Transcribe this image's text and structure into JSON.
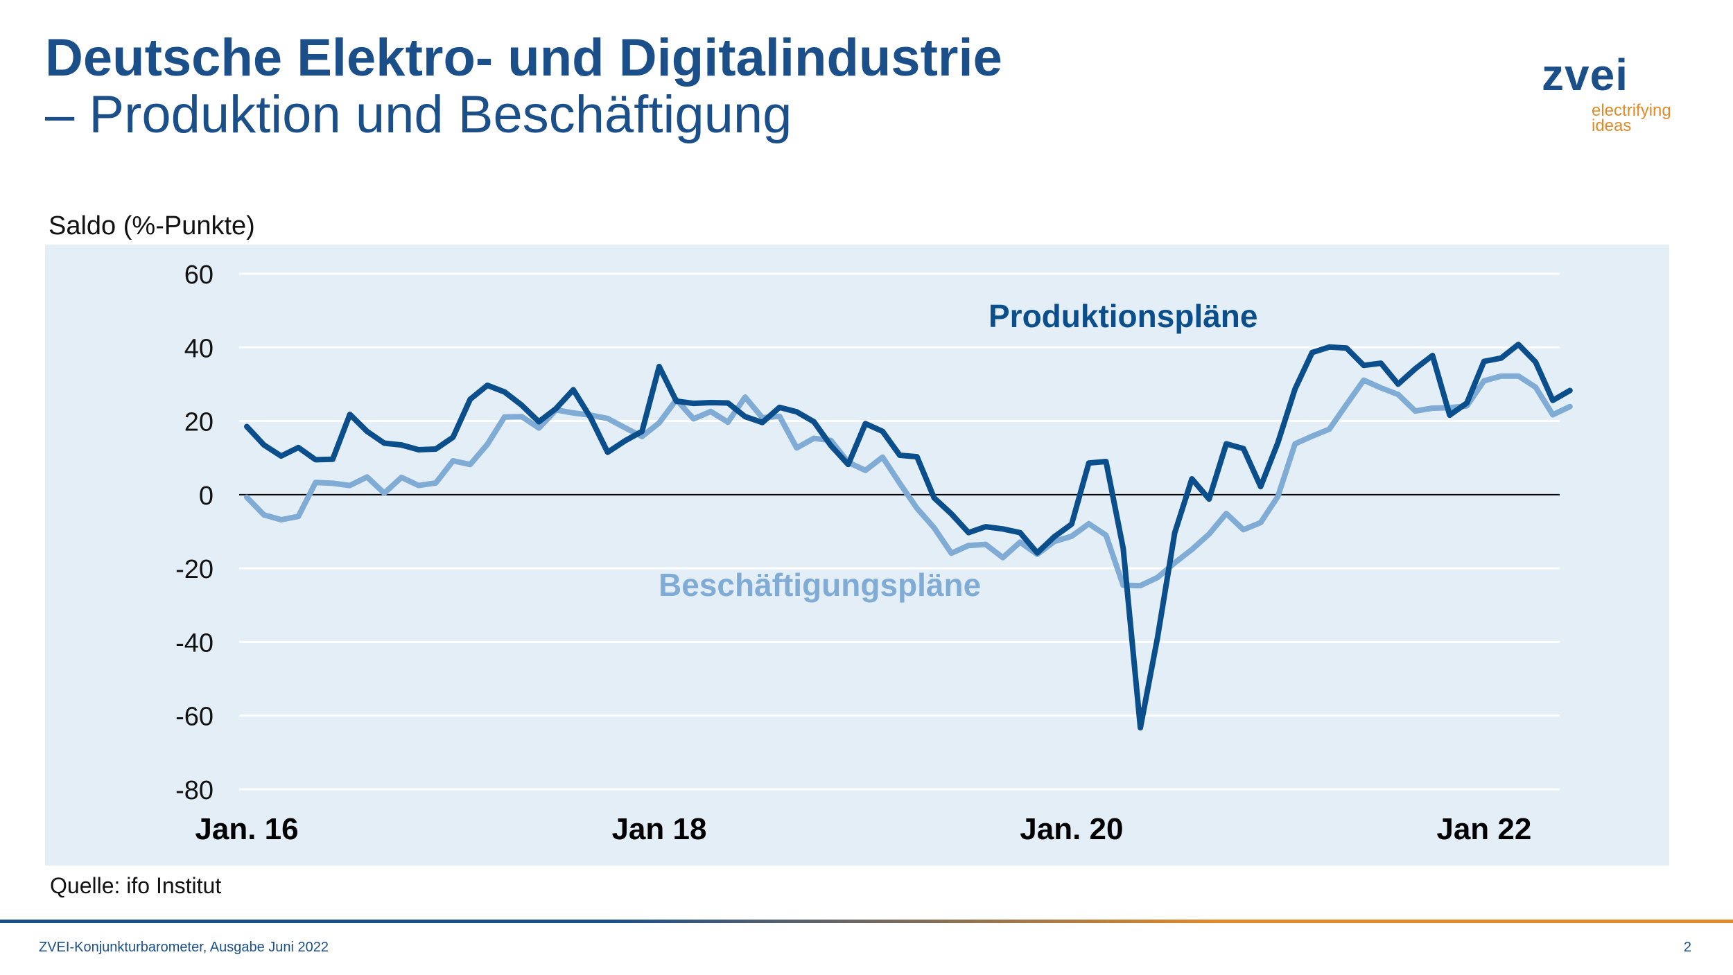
{
  "header": {
    "title": "Deutsche Elektro- und Digitalindustrie",
    "subtitle": "– Produktion und Beschäftigung"
  },
  "logo": {
    "word": "zvei",
    "tagline_1": "electrifying",
    "tagline_2": "ideas",
    "word_color": "#1b4f8a",
    "tagline_color": "#e08a2a"
  },
  "footer": {
    "source": "Quelle: ifo Institut",
    "publication": "ZVEI-Konjunkturbarometer, Ausgabe Juni 2022",
    "page": "2"
  },
  "chart_data": {
    "type": "line",
    "ylabel": "Saldo (%-Punkte)",
    "ylim": [
      -80,
      60
    ],
    "yticks": [
      60,
      40,
      20,
      0,
      -20,
      -40,
      -60,
      -80
    ],
    "x_start": "2016-01",
    "x_end": "2022-05",
    "x_tick_labels": [
      {
        "label": "Jan. 16",
        "date": "2016-01"
      },
      {
        "label": "Jan 18",
        "date": "2018-01"
      },
      {
        "label": "Jan. 20",
        "date": "2020-01"
      },
      {
        "label": "Jan 22",
        "date": "2022-01"
      }
    ],
    "grid": true,
    "background_color": "#e3eef7",
    "series": [
      {
        "name": "Produktionspläne",
        "color": "#0b4e8c",
        "values": [
          18.5,
          13.5,
          10.5,
          12.8,
          9.5,
          9.6,
          21.8,
          17.2,
          14,
          13.5,
          12.2,
          12.4,
          15.6,
          25.9,
          29.7,
          27.9,
          24.3,
          19.8,
          23.4,
          28.5,
          21,
          11.5,
          14.6,
          17.2,
          34.8,
          25.4,
          24.8,
          25,
          24.9,
          21.2,
          19.6,
          23.7,
          22.5,
          19.8,
          13.3,
          8.2,
          19.3,
          17.2,
          10.7,
          10.3,
          -0.9,
          -5.2,
          -10.3,
          -8.7,
          -9.3,
          -10.3,
          -15.8,
          -11.4,
          -8,
          8.6,
          9,
          -14.6,
          -63.3,
          -38.8,
          -10.4,
          4.3,
          -1.2,
          13.8,
          12.5,
          2.2,
          14.1,
          28.7,
          38.6,
          40.1,
          39.8,
          35.1,
          35.7,
          30,
          34.2,
          37.8,
          21.6,
          24.9,
          36.2,
          37.1,
          40.8,
          36,
          25.6,
          28.3
        ]
      },
      {
        "name": "Beschäftigungspläne",
        "color": "#7fabd4",
        "values": [
          -0.7,
          -5.5,
          -6.8,
          -5.9,
          3.3,
          3.1,
          2.5,
          4.8,
          0.4,
          4.7,
          2.5,
          3.2,
          9.2,
          8.2,
          13.7,
          21.1,
          21.2,
          18.1,
          23,
          22.2,
          21.6,
          20.7,
          18.2,
          15.8,
          19.5,
          25.8,
          20.6,
          22.6,
          19.7,
          26.5,
          20.9,
          21.3,
          12.7,
          15.3,
          14.7,
          8.8,
          6.6,
          10.2,
          3.1,
          -3.7,
          -9,
          -15.9,
          -13.8,
          -13.5,
          -17.1,
          -12.9,
          -16.2,
          -12.7,
          -11.3,
          -7.9,
          -11,
          -24.6,
          -24.7,
          -22.5,
          -18.5,
          -14.9,
          -10.7,
          -5.1,
          -9.5,
          -7.6,
          -0.5,
          13.8,
          15.9,
          17.8,
          24.5,
          31.1,
          29,
          27.2,
          22.7,
          23.5,
          23.6,
          24.1,
          30.9,
          32.2,
          32.2,
          29.2,
          21.7,
          23.9
        ]
      }
    ]
  }
}
